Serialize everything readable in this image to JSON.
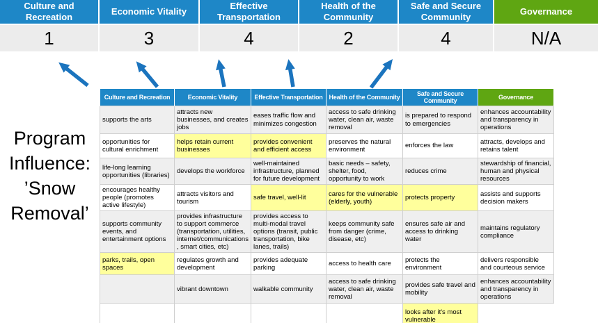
{
  "colors": {
    "blue": "#1E87C7",
    "green": "#5FA612",
    "yellow": "#FFFF9C",
    "score_bg": "#ECECEC",
    "zebra_gray": "#EFEFEF",
    "cell_border": "#CFCFCF",
    "arrow_blue": "#1B74BE"
  },
  "summary": {
    "columns": [
      {
        "label": "Culture and Recreation",
        "score": "1",
        "color": "blue"
      },
      {
        "label": "Economic Vitality",
        "score": "3",
        "color": "blue"
      },
      {
        "label": "Effective Transportation",
        "score": "4",
        "color": "blue"
      },
      {
        "label": "Health of the Community",
        "score": "2",
        "color": "blue"
      },
      {
        "label": "Safe and Secure Community",
        "score": "4",
        "color": "blue"
      },
      {
        "label": "Governance",
        "score": "N/A",
        "color": "green"
      }
    ]
  },
  "program_label": {
    "full_text": "Program Influence: ’Snow Removal’",
    "lines": [
      "Program",
      "Influence:",
      "’Snow",
      "Removal’"
    ]
  },
  "matrix": {
    "headers": [
      {
        "label": "Culture and Recreation",
        "color": "blue"
      },
      {
        "label": "Economic Vitality",
        "color": "blue"
      },
      {
        "label": "Effective Transportation",
        "color": "blue"
      },
      {
        "label": "Health of the Community",
        "color": "blue"
      },
      {
        "label": "Safe and Secure Community",
        "color": "blue"
      },
      {
        "label": "Governance",
        "color": "green"
      }
    ],
    "rows": [
      [
        {
          "text": "supports the arts",
          "highlight": false
        },
        {
          "text": "attracts new businesses, and creates jobs",
          "highlight": false
        },
        {
          "text": "eases traffic flow and minimizes congestion",
          "highlight": true
        },
        {
          "text": "access to safe drinking water, clean air, waste removal",
          "highlight": false
        },
        {
          "text": "is prepared to respond to emergencies",
          "highlight": true
        },
        {
          "text": "enhances accountability and transparency in operations",
          "highlight": false
        }
      ],
      [
        {
          "text": "opportunities for cultural enrichment",
          "highlight": false
        },
        {
          "text": "helps retain current businesses",
          "highlight": true
        },
        {
          "text": "provides convenient and efficient access",
          "highlight": true
        },
        {
          "text": "preserves the natural environment",
          "highlight": false
        },
        {
          "text": "enforces the law",
          "highlight": false
        },
        {
          "text": "attracts, develops and retains talent",
          "highlight": false
        }
      ],
      [
        {
          "text": "life-long learning opportunities (libraries)",
          "highlight": false
        },
        {
          "text": "develops the workforce",
          "highlight": false
        },
        {
          "text": "well-maintained infrastructure, planned for future development",
          "highlight": false
        },
        {
          "text": "basic needs – safety, shelter, food, opportunity to work",
          "highlight": true
        },
        {
          "text": "reduces crime",
          "highlight": false
        },
        {
          "text": "stewardship of financial, human and physical resources",
          "highlight": false
        }
      ],
      [
        {
          "text": "encourages healthy people (promotes active lifestyle)",
          "highlight": false
        },
        {
          "text": "attracts visitors and tourism",
          "highlight": false
        },
        {
          "text": "safe travel, well-lit",
          "highlight": true
        },
        {
          "text": "cares for the vulnerable (elderly, youth)",
          "highlight": true
        },
        {
          "text": "protects property",
          "highlight": true
        },
        {
          "text": "assists and supports decision makers",
          "highlight": false
        }
      ],
      [
        {
          "text": "supports community events, and entertainment options",
          "highlight": false
        },
        {
          "text": "provides infrastructure to support commerce (transportation, utilities, internet/communications, smart cities, etc)",
          "highlight": true
        },
        {
          "text": "provides access to multi-modal travel options (transit, public transportation, bike lanes, trails)",
          "highlight": true
        },
        {
          "text": "keeps community safe from danger (crime, disease, etc)",
          "highlight": true
        },
        {
          "text": "ensures safe air and access to drinking water",
          "highlight": false
        },
        {
          "text": "maintains regulatory compliance",
          "highlight": false
        }
      ],
      [
        {
          "text": "parks, trails, open spaces",
          "highlight": true
        },
        {
          "text": "regulates growth and development",
          "highlight": false
        },
        {
          "text": "provides adequate parking",
          "highlight": false
        },
        {
          "text": "access to health care",
          "highlight": false
        },
        {
          "text": "protects the environment",
          "highlight": false
        },
        {
          "text": "delivers responsible and courteous service",
          "highlight": false
        }
      ],
      [
        {
          "text": "",
          "highlight": false
        },
        {
          "text": "vibrant downtown",
          "highlight": false
        },
        {
          "text": "walkable community",
          "highlight": false
        },
        {
          "text": "access to safe drinking water, clean air, waste removal",
          "highlight": false
        },
        {
          "text": "provides safe travel and mobility",
          "highlight": true
        },
        {
          "text": "enhances accountability and transparency in operations",
          "highlight": false
        }
      ],
      [
        {
          "text": "",
          "highlight": false
        },
        {
          "text": "",
          "highlight": false
        },
        {
          "text": "",
          "highlight": false
        },
        {
          "text": "",
          "highlight": false
        },
        {
          "text": "looks after it's most vulnerable",
          "highlight": true
        },
        null
      ]
    ]
  }
}
